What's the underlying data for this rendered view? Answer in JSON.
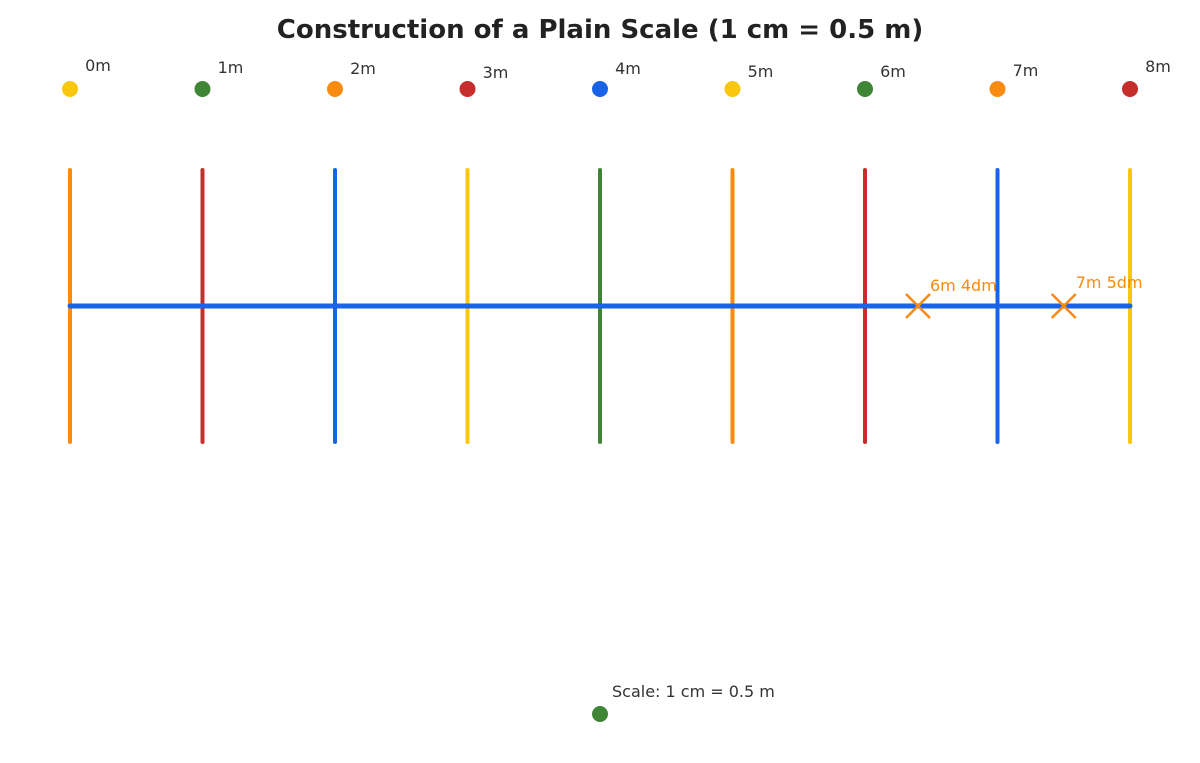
{
  "title": "Construction of a Plain Scale (1 cm = 0.5 m)",
  "divisions": [
    {
      "label": "0m",
      "dot_color": "#F9C80E",
      "line_color": "#F98B10"
    },
    {
      "label": "1m",
      "dot_color": "#3E8635",
      "line_color": "#C62D2D"
    },
    {
      "label": "2m",
      "dot_color": "#F98B10",
      "line_color": "#1863E6"
    },
    {
      "label": "3m",
      "dot_color": "#C62D2D",
      "line_color": "#F9C80E"
    },
    {
      "label": "4m",
      "dot_color": "#1863E6",
      "line_color": "#3E8635"
    },
    {
      "label": "5m",
      "dot_color": "#F9C80E",
      "line_color": "#F98B10"
    },
    {
      "label": "6m",
      "dot_color": "#3E8635",
      "line_color": "#C62D2D"
    },
    {
      "label": "7m",
      "dot_color": "#F98B10",
      "line_color": "#1863E6"
    },
    {
      "label": "8m",
      "dot_color": "#C62D2D",
      "line_color": "#F9C80E"
    }
  ],
  "base_line_color": "#1863E6",
  "marks": [
    {
      "label": "6m 4dm",
      "value_m": 6.4,
      "color": "#F98B10"
    },
    {
      "label": "7m 5dm",
      "value_m": 7.5,
      "color": "#F98B10"
    }
  ],
  "scale_note": {
    "label": "Scale: 1 cm = 0.5 m",
    "dot_color": "#3E8635"
  }
}
